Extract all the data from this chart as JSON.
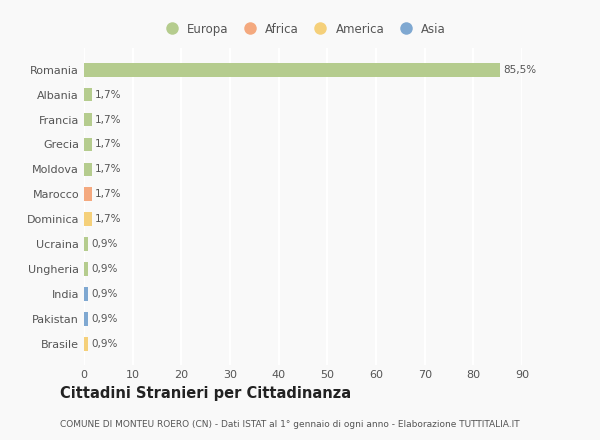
{
  "countries": [
    "Romania",
    "Albania",
    "Francia",
    "Grecia",
    "Moldova",
    "Marocco",
    "Dominica",
    "Ucraina",
    "Ungheria",
    "India",
    "Pakistan",
    "Brasile"
  ],
  "values": [
    85.5,
    1.7,
    1.7,
    1.7,
    1.7,
    1.7,
    1.7,
    0.9,
    0.9,
    0.9,
    0.9,
    0.9
  ],
  "labels": [
    "85,5%",
    "1,7%",
    "1,7%",
    "1,7%",
    "1,7%",
    "1,7%",
    "1,7%",
    "0,9%",
    "0,9%",
    "0,9%",
    "0,9%",
    "0,9%"
  ],
  "continents": [
    "Europa",
    "Europa",
    "Europa",
    "Europa",
    "Europa",
    "Africa",
    "America",
    "Europa",
    "Europa",
    "Asia",
    "Asia",
    "America"
  ],
  "colors": {
    "Europa": "#b5cc8e",
    "Africa": "#f4a97f",
    "America": "#f5d07a",
    "Asia": "#7fa8d1"
  },
  "legend_order": [
    "Europa",
    "Africa",
    "America",
    "Asia"
  ],
  "xlim": [
    0,
    90
  ],
  "xticks": [
    0,
    10,
    20,
    30,
    40,
    50,
    60,
    70,
    80,
    90
  ],
  "title": "Cittadini Stranieri per Cittadinanza",
  "subtitle": "COMUNE DI MONTEU ROERO (CN) - Dati ISTAT al 1° gennaio di ogni anno - Elaborazione TUTTITALIA.IT",
  "bg_color": "#f9f9f9",
  "grid_color": "#ffffff",
  "text_color": "#555555",
  "bar_height": 0.55,
  "label_fontsize": 7.5,
  "ytick_fontsize": 8,
  "xtick_fontsize": 8,
  "title_fontsize": 10.5,
  "subtitle_fontsize": 6.5,
  "legend_fontsize": 8.5
}
